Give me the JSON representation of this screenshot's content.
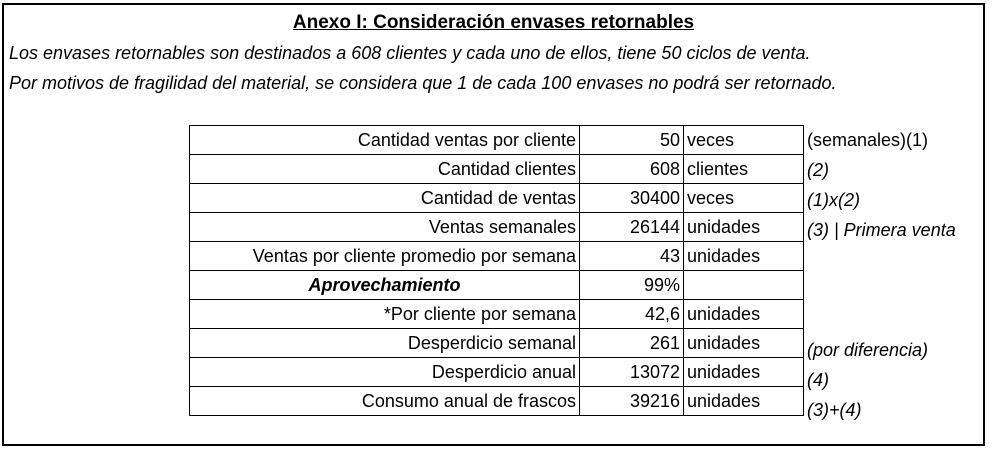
{
  "title": "Anexo I: Consideración envases retornables",
  "intro": [
    "Los envases retornables son destinados a 608 clientes y cada uno de ellos, tiene 50 ciclos de venta.",
    "Por motivos de fragilidad del material, se considera que 1 de cada 100 envases no podrá ser retornado."
  ],
  "rows": [
    {
      "label": "Cantidad ventas por cliente",
      "value": "50",
      "unit": "veces",
      "note": "(semanales)(1)"
    },
    {
      "label": "Cantidad clientes",
      "value": "608",
      "unit": "clientes",
      "note": "(2)"
    },
    {
      "label": "Cantidad de ventas",
      "value": "30400",
      "unit": "veces",
      "note": "(1)x(2)"
    },
    {
      "label": "Ventas semanales",
      "value": "26144",
      "unit": "unidades",
      "note": "(3) | Primera venta"
    },
    {
      "label": "Ventas por cliente promedio por semana",
      "value": "43",
      "unit": "unidades",
      "note": ""
    },
    {
      "label": "Aprovechamiento",
      "value": "99%",
      "unit": "",
      "note": ""
    },
    {
      "label": "*Por cliente por semana",
      "value": "42,6",
      "unit": "unidades",
      "note": ""
    },
    {
      "label": "Desperdicio semanal",
      "value": "261",
      "unit": "unidades",
      "note": "(por diferencia)"
    },
    {
      "label": "Desperdicio anual",
      "value": "13072",
      "unit": "unidades",
      "note": "(4)"
    },
    {
      "label": "Consumo anual de frascos",
      "value": "39216",
      "unit": "unidades",
      "note": "(3)+(4)"
    }
  ]
}
